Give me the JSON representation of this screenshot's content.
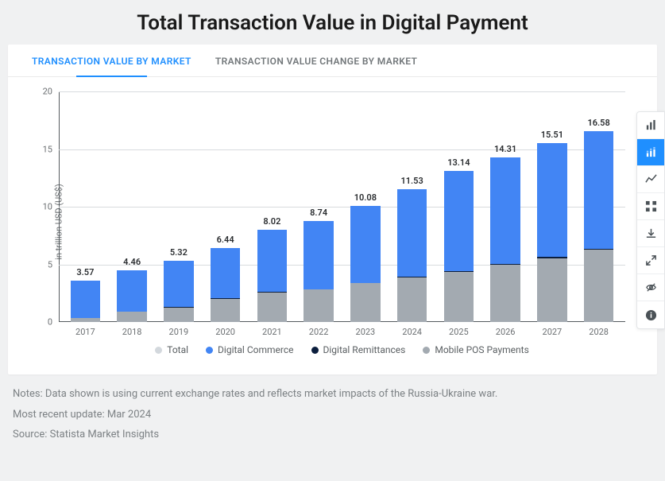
{
  "page": {
    "title": "Total Transaction Value in Digital Payment",
    "background": "#f0f1f2"
  },
  "tabs": [
    {
      "label": "TRANSACTION VALUE BY MARKET",
      "active": true
    },
    {
      "label": "TRANSACTION VALUE CHANGE BY MARKET",
      "active": false
    }
  ],
  "chart": {
    "type": "stacked-bar",
    "y_axis_label": "in trillion USD (US$)",
    "ylim": [
      0,
      20
    ],
    "ytick_step": 5,
    "yticks": [
      0,
      5,
      10,
      15,
      20
    ],
    "label_fontsize": 11,
    "grid_color": "#d8dbde",
    "axis_color": "#555b5f",
    "background_color": "#ffffff",
    "bar_width_pct": 64,
    "categories": [
      "2017",
      "2018",
      "2019",
      "2020",
      "2021",
      "2022",
      "2023",
      "2024",
      "2025",
      "2026",
      "2027",
      "2028"
    ],
    "totals": [
      3.57,
      4.46,
      5.32,
      6.44,
      8.02,
      8.74,
      10.08,
      11.53,
      13.14,
      14.31,
      15.51,
      16.58
    ],
    "series": [
      {
        "name": "Mobile POS Payments",
        "color": "#a3aab1",
        "values": [
          0.35,
          0.9,
          1.25,
          2.0,
          2.55,
          2.8,
          3.35,
          3.85,
          4.35,
          4.95,
          5.55,
          6.25
        ]
      },
      {
        "name": "Digital Remittances",
        "color": "#0b1e3d",
        "values": [
          0.02,
          0.03,
          0.03,
          0.04,
          0.05,
          0.05,
          0.06,
          0.07,
          0.08,
          0.09,
          0.1,
          0.11
        ]
      },
      {
        "name": "Digital Commerce",
        "color": "#4285f4",
        "values": [
          3.2,
          3.53,
          4.04,
          4.4,
          5.42,
          5.89,
          6.67,
          7.61,
          8.71,
          9.27,
          9.86,
          10.22
        ]
      }
    ],
    "legend_items": [
      {
        "label": "Total",
        "color": "#d3d8dd"
      },
      {
        "label": "Digital Commerce",
        "color": "#4285f4"
      },
      {
        "label": "Digital Remittances",
        "color": "#0b1e3d"
      },
      {
        "label": "Mobile POS Payments",
        "color": "#a3aab1"
      }
    ]
  },
  "notes": {
    "line1": "Notes: Data shown is using current exchange rates and reflects market impacts of the Russia-Ukraine war.",
    "line2": "Most recent update: Mar 2024",
    "line3": "Source: Statista Market Insights"
  },
  "sidebar_icons": [
    {
      "name": "bar-chart-icon",
      "active": false
    },
    {
      "name": "stacked-bar-icon",
      "active": true
    },
    {
      "name": "line-chart-icon",
      "active": false
    },
    {
      "name": "grid-icon",
      "active": false
    },
    {
      "name": "download-icon",
      "active": false
    },
    {
      "name": "expand-icon",
      "active": false
    },
    {
      "name": "hide-icon",
      "active": false
    },
    {
      "name": "info-icon",
      "active": false
    }
  ]
}
